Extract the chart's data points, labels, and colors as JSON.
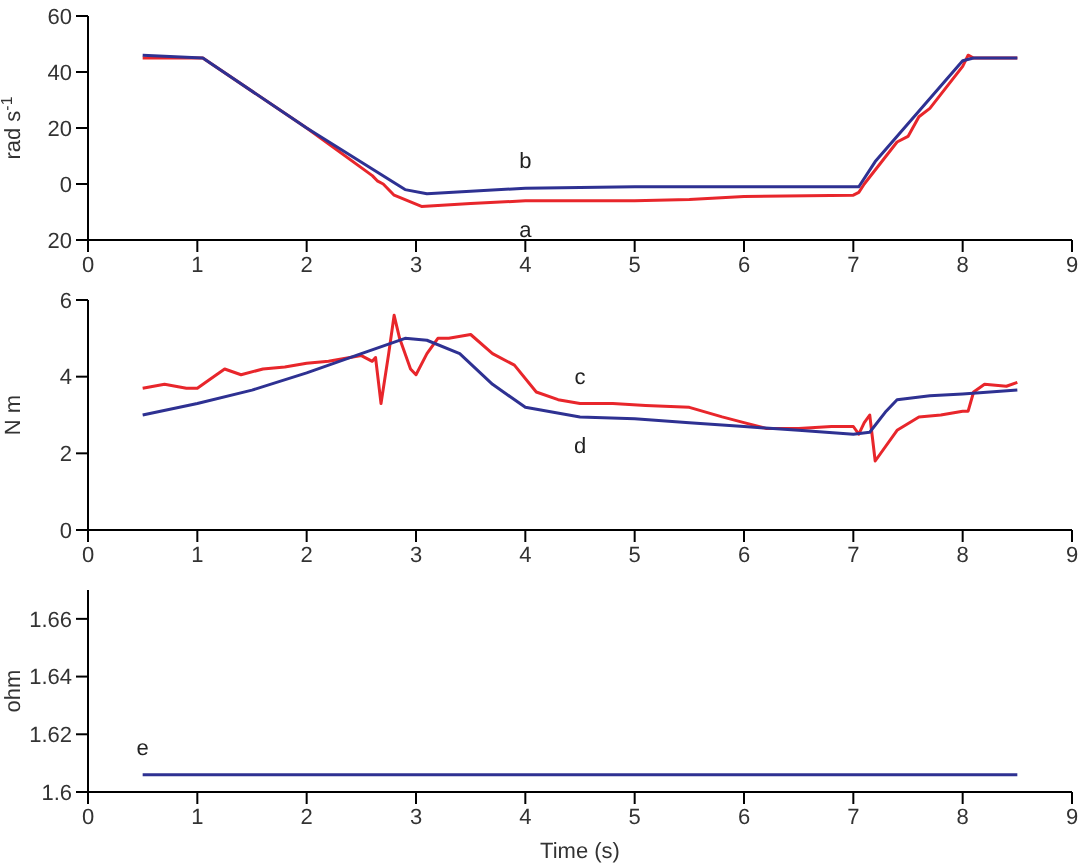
{
  "chart_data": [
    {
      "type": "line",
      "ylabel": "rad s$^{-1}$",
      "xlim": [
        0,
        9
      ],
      "xticks": [
        0,
        1,
        2,
        3,
        4,
        5,
        6,
        7,
        8,
        9
      ],
      "ylim": [
        -20,
        60
      ],
      "yticks": [
        {
          "value": -20,
          "label": "20"
        },
        0,
        20,
        40,
        60
      ],
      "grid": false,
      "legend": false,
      "series": [
        {
          "name": "a",
          "color": "#e8262b",
          "x": [
            0.5,
            1.05,
            2,
            2.6,
            2.65,
            2.7,
            2.8,
            3.05,
            3.5,
            4,
            5,
            5.5,
            6,
            7,
            7.05,
            7.1,
            7.4,
            7.5,
            7.6,
            7.7,
            7.8,
            8,
            8.05,
            8.1,
            8.5
          ],
          "values": [
            45,
            45,
            20,
            3,
            1,
            0,
            -4,
            -8,
            -7,
            -6,
            -6,
            -5.5,
            -4.5,
            -4,
            -3,
            0,
            15,
            17,
            24,
            27,
            32,
            42,
            46,
            45,
            45
          ]
        },
        {
          "name": "b",
          "color": "#2e3192",
          "x": [
            0.5,
            1.05,
            2,
            2.9,
            3.1,
            4,
            5,
            7.05,
            7.2,
            8,
            8.1,
            8.5
          ],
          "values": [
            46,
            45,
            20,
            -2,
            -3.5,
            -1.5,
            -1,
            -1,
            8,
            44,
            45,
            45
          ]
        }
      ]
    },
    {
      "type": "line",
      "ylabel": "N m",
      "xlim": [
        0,
        9
      ],
      "xticks": [
        0,
        1,
        2,
        3,
        4,
        5,
        6,
        7,
        8,
        9
      ],
      "ylim": [
        0,
        6
      ],
      "yticks": [
        0,
        2,
        4,
        6
      ],
      "grid": false,
      "legend": false,
      "series": [
        {
          "name": "c",
          "color": "#e8262b",
          "x": [
            0.5,
            0.7,
            0.9,
            1.0,
            1.1,
            1.25,
            1.4,
            1.6,
            1.8,
            2.0,
            2.2,
            2.5,
            2.6,
            2.63,
            2.68,
            2.75,
            2.8,
            2.85,
            2.95,
            3.0,
            3.1,
            3.2,
            3.3,
            3.5,
            3.7,
            3.9,
            4.1,
            4.3,
            4.5,
            4.8,
            5.1,
            5.5,
            5.8,
            6.0,
            6.2,
            6.5,
            6.8,
            7.0,
            7.05,
            7.1,
            7.15,
            7.2,
            7.4,
            7.6,
            7.8,
            8.0,
            8.05,
            8.1,
            8.2,
            8.4,
            8.5
          ],
          "values": [
            3.7,
            3.8,
            3.7,
            3.7,
            3.9,
            4.2,
            4.05,
            4.2,
            4.25,
            4.35,
            4.4,
            4.55,
            4.4,
            4.5,
            3.3,
            4.6,
            5.6,
            5.0,
            4.2,
            4.05,
            4.6,
            5.0,
            5.0,
            5.1,
            4.6,
            4.3,
            3.6,
            3.4,
            3.3,
            3.3,
            3.25,
            3.2,
            2.95,
            2.8,
            2.65,
            2.65,
            2.7,
            2.7,
            2.5,
            2.8,
            3.0,
            1.8,
            2.6,
            2.95,
            3.0,
            3.1,
            3.1,
            3.6,
            3.8,
            3.75,
            3.85
          ]
        },
        {
          "name": "d",
          "color": "#2e3192",
          "x": [
            0.5,
            1,
            1.5,
            2,
            2.5,
            2.9,
            3.1,
            3.4,
            3.7,
            4.0,
            4.5,
            5,
            5.5,
            6,
            6.5,
            7,
            7.15,
            7.3,
            7.4,
            7.7,
            8,
            8.5
          ],
          "values": [
            3.0,
            3.3,
            3.65,
            4.1,
            4.6,
            5.0,
            4.95,
            4.6,
            3.8,
            3.2,
            2.95,
            2.9,
            2.8,
            2.7,
            2.6,
            2.5,
            2.55,
            3.1,
            3.4,
            3.5,
            3.55,
            3.65
          ]
        }
      ]
    },
    {
      "type": "line",
      "xlabel": "Time (s)",
      "ylabel": "ohm",
      "xlim": [
        0,
        9
      ],
      "xticks": [
        0,
        1,
        2,
        3,
        4,
        5,
        6,
        7,
        8,
        9
      ],
      "ylim": [
        1.6,
        1.67
      ],
      "yticks": [
        1.6,
        1.62,
        1.64,
        1.66
      ],
      "grid": false,
      "legend": false,
      "series": [
        {
          "name": "e",
          "color": "#2e3192",
          "x": [
            0.5,
            8.5
          ],
          "values": [
            1.606,
            1.606
          ]
        }
      ]
    }
  ]
}
